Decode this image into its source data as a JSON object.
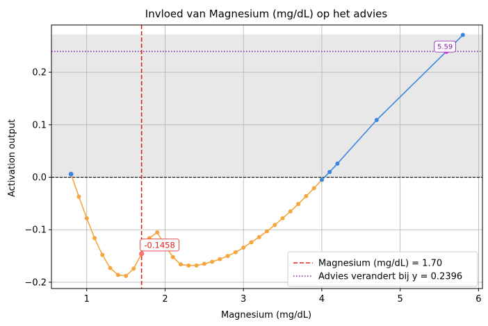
{
  "chart_data": {
    "type": "line",
    "title": "Invloed van Magnesium (mg/dL) op het advies",
    "xlabel": "Magnesium (mg/dL)",
    "ylabel": "Activation output",
    "xlim": [
      0.55,
      6.05
    ],
    "ylim": [
      -0.212,
      0.29
    ],
    "xticks": [
      1,
      2,
      3,
      4,
      5,
      6
    ],
    "yticks": [
      -0.2,
      -0.1,
      0.0,
      0.1,
      0.2
    ],
    "ytick_labels": [
      "−0.2",
      "−0.1",
      "0.0",
      "0.1",
      "0.2"
    ],
    "grid": true,
    "shaded_band": {
      "y_from": 0.0,
      "y_to": 0.272,
      "color": "#e8e8e8"
    },
    "zero_line": {
      "y": 0.0,
      "color": "#000000"
    },
    "series": [
      {
        "color": "#f4a53b",
        "x": [
          0.8,
          0.9,
          1.0,
          1.1,
          1.2,
          1.3,
          1.4,
          1.5,
          1.6,
          1.7,
          1.8,
          1.9,
          2.0,
          2.1,
          2.2,
          2.3,
          2.4,
          2.5,
          2.6,
          2.7,
          2.8,
          2.9,
          3.0,
          3.1,
          3.2,
          3.3,
          3.4,
          3.5,
          3.6,
          3.7,
          3.8,
          3.9,
          4.0
        ],
        "y": [
          0.006,
          -0.037,
          -0.078,
          -0.116,
          -0.148,
          -0.173,
          -0.186,
          -0.188,
          -0.174,
          -0.1458,
          -0.116,
          -0.105,
          -0.13,
          -0.152,
          -0.166,
          -0.168,
          -0.168,
          -0.165,
          -0.161,
          -0.156,
          -0.15,
          -0.143,
          -0.134,
          -0.124,
          -0.114,
          -0.103,
          -0.091,
          -0.078,
          -0.065,
          -0.051,
          -0.036,
          -0.021,
          -0.005
        ]
      },
      {
        "color": "#3b84e0",
        "x": [
          4.0,
          4.1,
          4.2,
          4.7,
          5.59,
          5.8
        ],
        "y": [
          -0.005,
          0.01,
          0.026,
          0.109,
          0.2396,
          0.271
        ]
      }
    ],
    "start_marker": {
      "x": 0.8,
      "y": 0.006,
      "color": "#3b84e0"
    },
    "vertical_line": {
      "x": 1.7,
      "color": "#e02020",
      "legend": "Magnesium (mg/dL) = 1.70"
    },
    "horizontal_line": {
      "y": 0.2396,
      "color": "#8a1aa8",
      "legend": "Advies verandert bij y = 0.2396"
    },
    "annotations": [
      {
        "text": "-0.1458",
        "x": 1.7,
        "y": -0.1458,
        "color": "#e02020",
        "marker_color": "#ff7070"
      },
      {
        "text": "5.59",
        "x": 5.59,
        "y": 0.2396,
        "color": "#8a1aa8",
        "marker_color": "#d84ad8"
      }
    ],
    "legend_position": "lower-right"
  }
}
